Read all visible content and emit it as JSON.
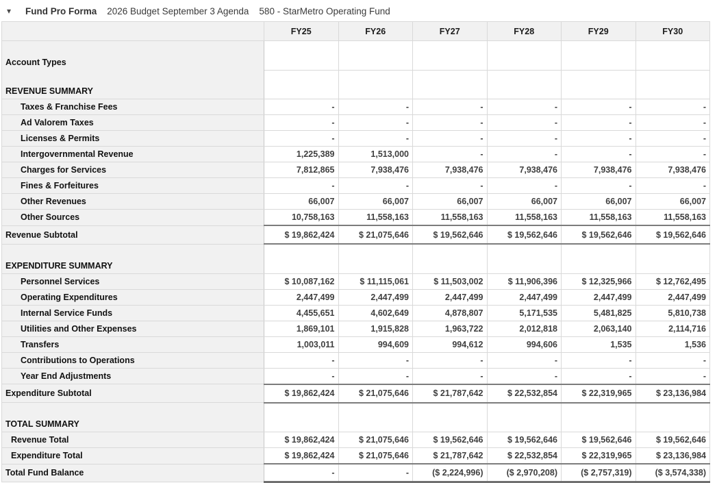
{
  "header": {
    "collapse_icon": "▾",
    "title": "Fund Pro Forma",
    "subtitle1": "2026 Budget September 3 Agenda",
    "subtitle2": "580 - StarMetro Operating Fund"
  },
  "table": {
    "columns": [
      "FY25",
      "FY26",
      "FY27",
      "FY28",
      "FY29",
      "FY30"
    ],
    "rows": [
      {
        "label": "Account Types",
        "kind": "section",
        "indent": 0,
        "label_divider": false,
        "values": [
          "",
          "",
          "",
          "",
          "",
          ""
        ]
      },
      {
        "label": "REVENUE SUMMARY",
        "kind": "section",
        "indent": 0,
        "values": [
          "",
          "",
          "",
          "",
          "",
          ""
        ]
      },
      {
        "label": "Taxes & Franchise Fees",
        "kind": "data",
        "indent": 2,
        "values": [
          "-",
          "-",
          "-",
          "-",
          "-",
          "-"
        ]
      },
      {
        "label": "Ad Valorem Taxes",
        "kind": "data",
        "indent": 2,
        "values": [
          "-",
          "-",
          "-",
          "-",
          "-",
          "-"
        ]
      },
      {
        "label": "Licenses & Permits",
        "kind": "data",
        "indent": 2,
        "values": [
          "-",
          "-",
          "-",
          "-",
          "-",
          "-"
        ]
      },
      {
        "label": "Intergovernmental Revenue",
        "kind": "data",
        "indent": 2,
        "values": [
          "1,225,389",
          "1,513,000",
          "-",
          "-",
          "-",
          "-"
        ]
      },
      {
        "label": "Charges for Services",
        "kind": "data",
        "indent": 2,
        "values": [
          "7,812,865",
          "7,938,476",
          "7,938,476",
          "7,938,476",
          "7,938,476",
          "7,938,476"
        ]
      },
      {
        "label": "Fines & Forfeitures",
        "kind": "data",
        "indent": 2,
        "values": [
          "-",
          "-",
          "-",
          "-",
          "-",
          "-"
        ]
      },
      {
        "label": "Other Revenues",
        "kind": "data",
        "indent": 2,
        "values": [
          "66,007",
          "66,007",
          "66,007",
          "66,007",
          "66,007",
          "66,007"
        ]
      },
      {
        "label": "Other Sources",
        "kind": "data",
        "indent": 2,
        "values": [
          "10,758,163",
          "11,558,163",
          "11,558,163",
          "11,558,163",
          "11,558,163",
          "11,558,163"
        ]
      },
      {
        "label": "Revenue Subtotal",
        "kind": "subtotal",
        "indent": 0,
        "values": [
          "$ 19,862,424",
          "$ 21,075,646",
          "$ 19,562,646",
          "$ 19,562,646",
          "$ 19,562,646",
          "$ 19,562,646"
        ]
      },
      {
        "label": "EXPENDITURE SUMMARY",
        "kind": "section",
        "indent": 0,
        "values": [
          "",
          "",
          "",
          "",
          "",
          ""
        ]
      },
      {
        "label": "Personnel Services",
        "kind": "data",
        "indent": 2,
        "values": [
          "$ 10,087,162",
          "$ 11,115,061",
          "$ 11,503,002",
          "$ 11,906,396",
          "$ 12,325,966",
          "$ 12,762,495"
        ]
      },
      {
        "label": "Operating Expenditures",
        "kind": "data",
        "indent": 2,
        "values": [
          "2,447,499",
          "2,447,499",
          "2,447,499",
          "2,447,499",
          "2,447,499",
          "2,447,499"
        ]
      },
      {
        "label": "Internal Service Funds",
        "kind": "data",
        "indent": 2,
        "values": [
          "4,455,651",
          "4,602,649",
          "4,878,807",
          "5,171,535",
          "5,481,825",
          "5,810,738"
        ]
      },
      {
        "label": "Utilities and Other Expenses",
        "kind": "data",
        "indent": 2,
        "values": [
          "1,869,101",
          "1,915,828",
          "1,963,722",
          "2,012,818",
          "2,063,140",
          "2,114,716"
        ]
      },
      {
        "label": "Transfers",
        "kind": "data",
        "indent": 2,
        "values": [
          "1,003,011",
          "994,609",
          "994,612",
          "994,606",
          "1,535",
          "1,536"
        ]
      },
      {
        "label": "Contributions to Operations",
        "kind": "data",
        "indent": 2,
        "values": [
          "-",
          "-",
          "-",
          "-",
          "-",
          "-"
        ]
      },
      {
        "label": "Year End Adjustments",
        "kind": "data",
        "indent": 2,
        "values": [
          "-",
          "-",
          "-",
          "-",
          "-",
          "-"
        ]
      },
      {
        "label": "Expenditure Subtotal",
        "kind": "subtotal",
        "indent": 0,
        "values": [
          "$ 19,862,424",
          "$ 21,075,646",
          "$ 21,787,642",
          "$ 22,532,854",
          "$ 22,319,965",
          "$ 23,136,984"
        ]
      },
      {
        "label": "TOTAL SUMMARY",
        "kind": "section",
        "indent": 0,
        "values": [
          "",
          "",
          "",
          "",
          "",
          ""
        ]
      },
      {
        "label": "Revenue Total",
        "kind": "total",
        "indent": 1,
        "values": [
          "$ 19,862,424",
          "$ 21,075,646",
          "$ 19,562,646",
          "$ 19,562,646",
          "$ 19,562,646",
          "$ 19,562,646"
        ]
      },
      {
        "label": "Expenditure Total",
        "kind": "total",
        "indent": 1,
        "values": [
          "$ 19,862,424",
          "$ 21,075,646",
          "$ 21,787,642",
          "$ 22,532,854",
          "$ 22,319,965",
          "$ 23,136,984"
        ]
      },
      {
        "label": "Total Fund Balance",
        "kind": "grandtotal",
        "indent": 0,
        "values": [
          "-",
          "-",
          "($ 2,224,996)",
          "($ 2,970,208)",
          "($ 2,757,319)",
          "($ 3,574,338)"
        ]
      }
    ]
  }
}
